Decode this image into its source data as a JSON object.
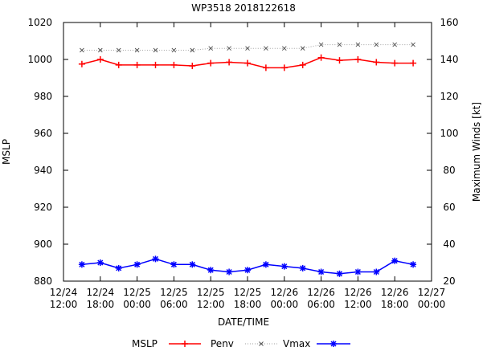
{
  "chart_data": {
    "type": "line",
    "title": "WP3518 2018122618",
    "xlabel": "DATE/TIME",
    "ylabel": "MSLP",
    "y2label": "Maximum Winds [kt]",
    "x_hours": [
      0,
      24
    ],
    "x_ticks": [
      {
        "h": 0,
        "l1": "12/24",
        "l2": "12:00"
      },
      {
        "h": 6,
        "l1": "12/24",
        "l2": "18:00"
      },
      {
        "h": 12,
        "l1": "12/25",
        "l2": "00:00"
      },
      {
        "h": 18,
        "l1": "12/25",
        "l2": "06:00"
      },
      {
        "h": 24,
        "l1": "12/25",
        "l2": "12:00"
      },
      {
        "h": 30,
        "l1": "12/25",
        "l2": "18:00"
      },
      {
        "h": 36,
        "l1": "12/26",
        "l2": "00:00"
      },
      {
        "h": 42,
        "l1": "12/26",
        "l2": "06:00"
      },
      {
        "h": 48,
        "l1": "12/26",
        "l2": "12:00"
      },
      {
        "h": 54,
        "l1": "12/26",
        "l2": "18:00"
      },
      {
        "h": 60,
        "l1": "12/27",
        "l2": "00:00"
      }
    ],
    "x_range": [
      0,
      60
    ],
    "ylim": [
      880,
      1020
    ],
    "y_ticks": [
      880,
      900,
      920,
      940,
      960,
      980,
      1000,
      1020
    ],
    "y2lim": [
      20,
      160
    ],
    "y2_ticks": [
      20,
      40,
      60,
      80,
      100,
      120,
      140,
      160
    ],
    "x": [
      3,
      6,
      9,
      12,
      15,
      18,
      21,
      24,
      27,
      30,
      33,
      36,
      39,
      42,
      45,
      48,
      51,
      54,
      57
    ],
    "series": [
      {
        "name": "MSLP",
        "axis": "left",
        "color": "#ff0000",
        "values": [
          997.5,
          1000,
          997,
          997,
          997,
          997,
          996.5,
          998,
          998.5,
          998,
          995.5,
          995.5,
          997,
          1001,
          999.5,
          1000,
          998.5,
          998,
          998
        ]
      },
      {
        "name": "Penv",
        "axis": "left",
        "color": "#a0a0a0",
        "values": [
          1005,
          1005,
          1005,
          1005,
          1005,
          1005,
          1005,
          1006,
          1006,
          1006,
          1006,
          1006,
          1006,
          1008,
          1008,
          1008,
          1008,
          1008,
          1008
        ]
      },
      {
        "name": "Vmax",
        "axis": "right",
        "color": "#0000ff",
        "values": [
          29,
          30,
          27,
          29,
          32,
          29,
          29,
          26,
          25,
          26,
          29,
          28,
          27,
          25,
          24,
          25,
          25,
          31,
          29
        ]
      }
    ]
  }
}
